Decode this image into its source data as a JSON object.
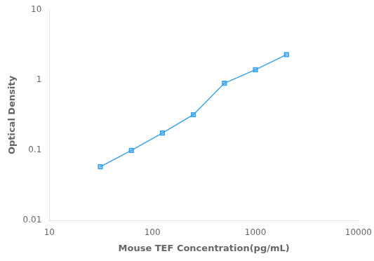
{
  "chart_data": {
    "type": "line",
    "x": [
      31.25,
      62.5,
      125,
      250,
      500,
      1000,
      2000
    ],
    "values": [
      0.058,
      0.099,
      0.175,
      0.32,
      0.9,
      1.4,
      2.3
    ],
    "xlabel": "Mouse TEF Concentration(pg/mL)",
    "ylabel": "Optical Density",
    "xlim": [
      10,
      10000
    ],
    "ylim": [
      0.01,
      10
    ],
    "xticks": [
      10,
      100,
      1000,
      10000
    ],
    "yticks": [
      0.01,
      0.1,
      1,
      10
    ],
    "log": true,
    "marker": "square",
    "grid": false
  }
}
